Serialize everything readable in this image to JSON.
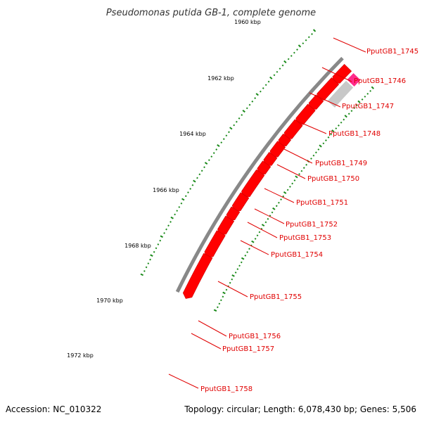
{
  "title": "Pseudomonas putida GB-1, complete genome",
  "accession": "Accession: NC_010322",
  "topology": "Topology: circular; Length: 6,078,430 bp; Genes: 5,506",
  "colors": {
    "gene": "#ff0000",
    "gene_dark": "#cc0000",
    "backbone": "#888888",
    "tick": "#1a8a1a",
    "label": "#e00000",
    "leader": "#e00000",
    "highlight": "#ff2a8a",
    "faded": "#c8c8c8"
  },
  "scale_labels": [
    "1960 kbp",
    "1962 kbp",
    "1964 kbp",
    "1966 kbp",
    "1968 kbp",
    "1970 kbp",
    "1972 kbp"
  ],
  "gene_labels": [
    "PputGB1_1745",
    "PputGB1_1746",
    "PputGB1_1747",
    "PputGB1_1748",
    "PputGB1_1749",
    "PputGB1_1750",
    "PputGB1_1751",
    "PputGB1_1752",
    "PputGB1_1753",
    "PputGB1_1754",
    "PputGB1_1755",
    "PputGB1_1756",
    "PputGB1_1757",
    "PputGB1_1758"
  ]
}
